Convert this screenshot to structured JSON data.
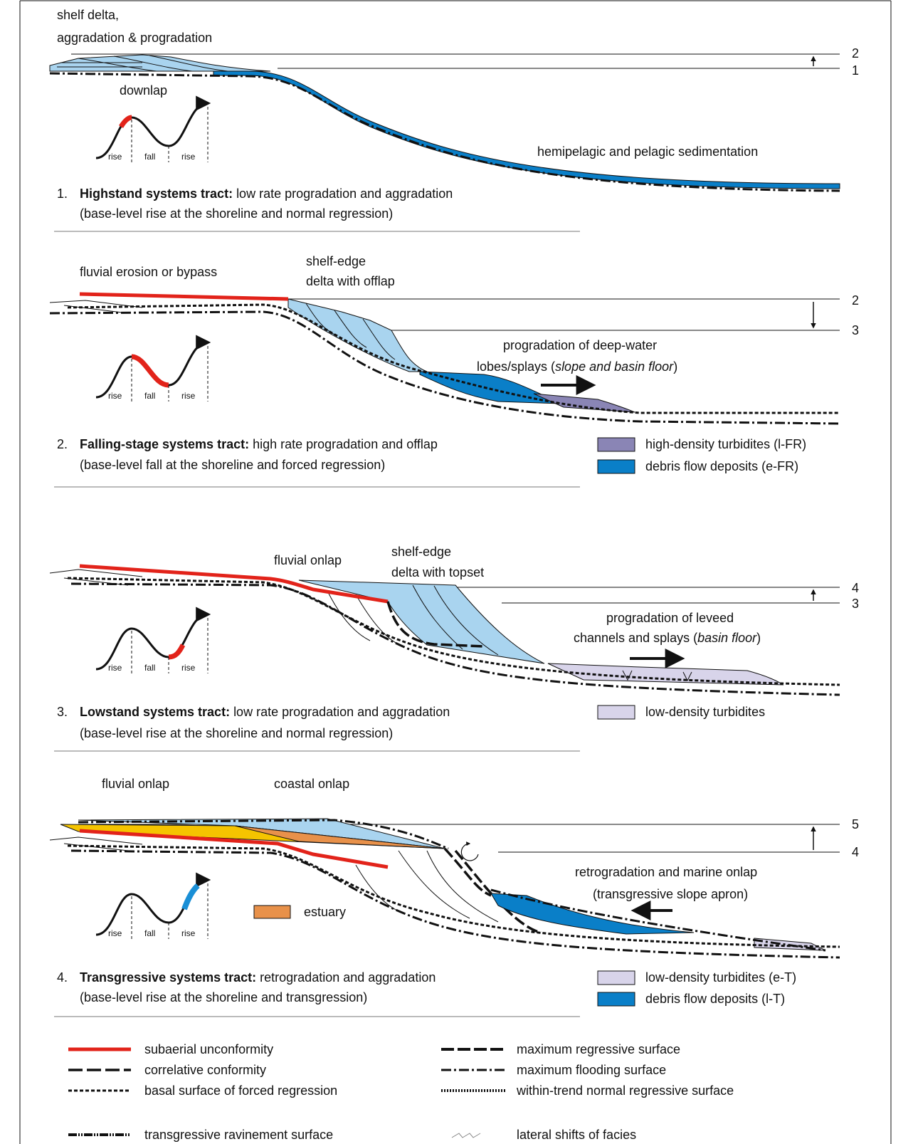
{
  "panels": [
    {
      "labels": [
        "shelf delta,",
        "aggradation & progradation",
        "downlap",
        "hemipelagic and pelagic sedimentation"
      ],
      "levels": [
        "2",
        "1"
      ],
      "curve": [
        "rise",
        "fall",
        "rise"
      ],
      "number": "1.",
      "title": "Highstand systems tract:",
      "description": "low rate progradation and aggradation",
      "note": "(base-level rise at the shoreline and normal regression)"
    },
    {
      "labels": [
        "fluvial erosion or bypass",
        "shelf-edge",
        "delta with offlap",
        "progradation of deep-water"
      ],
      "mixed_label": [
        "lobes/splays (",
        "slope and basin floor",
        ")"
      ],
      "levels": [
        "2",
        "3"
      ],
      "curve": [
        "rise",
        "fall",
        "rise"
      ],
      "number": "2.",
      "title": "Falling-stage systems tract:",
      "description": "high rate progradation and offlap",
      "note": "(base-level fall at the shoreline and forced regression)",
      "legend": [
        "high-density turbidites (l-FR)",
        "debris flow deposits (e-FR)"
      ]
    },
    {
      "labels": [
        "fluvial onlap",
        "shelf-edge",
        "delta with topset",
        "progradation of leveed"
      ],
      "mixed_label": [
        "channels and splays (",
        "basin floor",
        ")"
      ],
      "levels": [
        "4",
        "3"
      ],
      "curve": [
        "rise",
        "fall",
        "rise"
      ],
      "number": "3.",
      "title": "Lowstand systems tract:",
      "description": "low rate progradation and aggradation",
      "note": "(base-level rise at the shoreline and normal regression)",
      "legend": [
        "low-density turbidites"
      ]
    },
    {
      "labels": [
        "fluvial onlap",
        "coastal onlap",
        "retrogradation and marine onlap",
        "(transgressive slope apron)",
        "estuary"
      ],
      "levels": [
        "5",
        "4"
      ],
      "curve": [
        "rise",
        "fall",
        "rise"
      ],
      "number": "4.",
      "title": "Transgressive systems tract:",
      "description": "retrogradation and aggradation",
      "note": "(base-level rise at the shoreline and transgression)",
      "legend": [
        "low-density turbidites (e-T)",
        "debris flow deposits (l-T)"
      ]
    }
  ],
  "legend": [
    "subaerial unconformity",
    "correlative conformity",
    "basal surface of forced regression",
    "transgressive ravinement surface",
    "maximum regressive surface",
    "maximum flooding surface",
    "within-trend normal regressive surface",
    "lateral shifts of facies"
  ]
}
